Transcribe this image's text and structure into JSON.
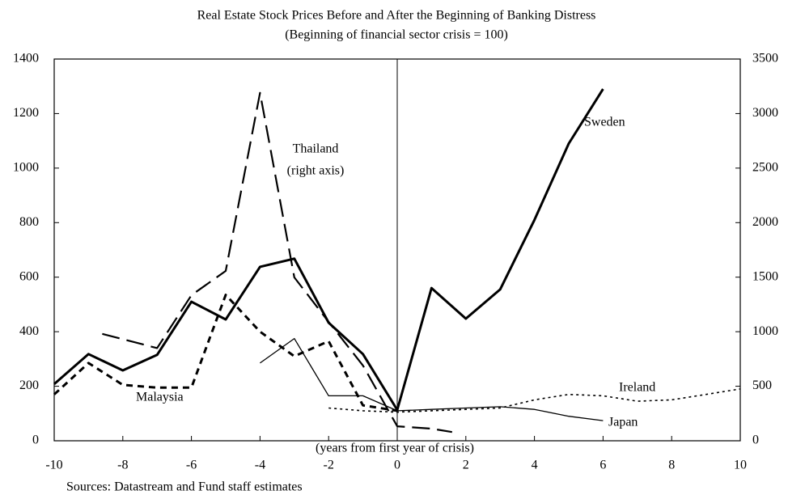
{
  "chart_data": {
    "type": "line",
    "title": "Real Estate Stock Prices Before and After the Beginning of Banking Distress",
    "subtitle": "(Beginning of financial sector crisis = 100)",
    "x_label": "(years from first year of crisis)",
    "source": "Sources: Datastream and Fund staff estimates",
    "xlim": [
      -10,
      10
    ],
    "xticks": [
      -10,
      -8,
      -6,
      -4,
      -2,
      0,
      2,
      4,
      6,
      8,
      10
    ],
    "ylim": [
      0,
      1400
    ],
    "yticks": [
      0,
      200,
      400,
      600,
      800,
      1000,
      1200,
      1400
    ],
    "y2lim": [
      0,
      3500
    ],
    "y2ticks": [
      0,
      500,
      1000,
      1500,
      2000,
      2500,
      3000,
      3500
    ],
    "series": [
      {
        "name": "Sweden",
        "color": "#000000",
        "line_style": "thick-solid",
        "x": [
          -10,
          -9,
          -8,
          -7,
          -6,
          -5,
          -4,
          -3,
          -2,
          -1,
          0,
          1,
          2,
          3,
          4,
          5,
          6
        ],
        "values": [
          208,
          318,
          258,
          315,
          510,
          445,
          638,
          668,
          433,
          318,
          113,
          560,
          448,
          555,
          810,
          1090,
          1290
        ]
      },
      {
        "name": "Thailand",
        "color": "#000000",
        "line_style": "long-dash",
        "axis": "y2",
        "annotation": "(right axis)",
        "x": [
          -8.6,
          -7,
          -6,
          -5,
          -4,
          -3,
          -2,
          -1,
          0,
          1,
          1.6
        ],
        "values": [
          980,
          850,
          1335,
          1557,
          3190,
          1498,
          1090,
          690,
          133,
          111,
          80
        ]
      },
      {
        "name": "Malaysia",
        "color": "#000000",
        "line_style": "short-dash",
        "x": [
          -10,
          -9,
          -8,
          -7,
          -6,
          -5,
          -4,
          -3,
          -2,
          -1,
          0
        ],
        "values": [
          170,
          285,
          205,
          195,
          195,
          535,
          400,
          310,
          365,
          130,
          110
        ]
      },
      {
        "name": "Japan",
        "color": "#000000",
        "line_style": "thin-solid",
        "x": [
          -4,
          -3,
          -2,
          -1,
          0,
          1,
          2,
          3,
          4,
          5,
          6
        ],
        "values": [
          285,
          375,
          165,
          165,
          110,
          115,
          120,
          125,
          115,
          90,
          74
        ]
      },
      {
        "name": "Ireland",
        "color": "#000000",
        "line_style": "dotted",
        "x": [
          -2,
          -1,
          0,
          1,
          2,
          3,
          4,
          5,
          6,
          7,
          8,
          9,
          10
        ],
        "values": [
          120,
          110,
          105,
          110,
          115,
          120,
          150,
          170,
          165,
          145,
          150,
          170,
          190
        ]
      }
    ]
  }
}
